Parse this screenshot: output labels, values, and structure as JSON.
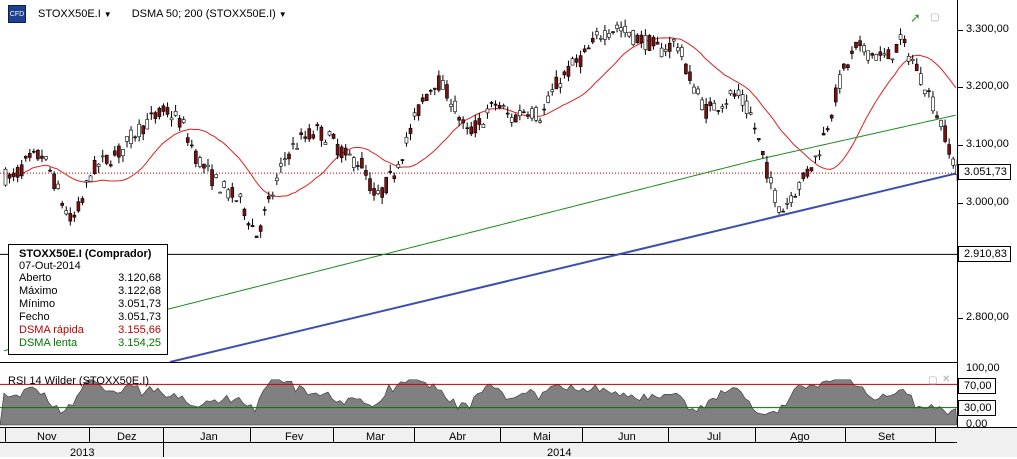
{
  "toolbar": {
    "symbol": "STOXX50E.I",
    "indicator": "DSMA 50; 200 (STOXX50E.I)",
    "cfd_icon": "CFD"
  },
  "price_axis": {
    "labels": [
      "3.300,00",
      "3.200,00",
      "3.100,00",
      "3.000,00",
      "2.800,00"
    ],
    "current_price": "3.051,73",
    "line_price": "2.910,83"
  },
  "rsi": {
    "title": "RSI 14 Wilder (STOXX50E.I)",
    "labels": [
      "100,00",
      "70,00",
      "30,00",
      "0,00"
    ]
  },
  "time_axis": {
    "months": [
      "Nov",
      "Dez",
      "Jan",
      "Fev",
      "Mar",
      "Abr",
      "Mai",
      "Jun",
      "Jul",
      "Ago",
      "Set"
    ],
    "years": [
      "2013",
      "2014"
    ]
  },
  "info_box": {
    "title": "STOXX50E.I (Comprador)",
    "date": "07-Out-2014",
    "rows": [
      {
        "label": "Aberto",
        "value": "3.120,68"
      },
      {
        "label": "Máximo",
        "value": "3.122,68"
      },
      {
        "label": "Mínimo",
        "value": "3.051,73"
      },
      {
        "label": "Fecho",
        "value": "3.051,73"
      },
      {
        "label": "DSMA rápida",
        "value": "3.155,66"
      },
      {
        "label": "DSMA lenta",
        "value": "3.154,25"
      }
    ]
  },
  "colors": {
    "up_candle": "#ffffff",
    "down_candle": "#7a1010",
    "fast_ma": "#e02020",
    "slow_ma": "#1f8a1f",
    "trendline": "#3a4fb0",
    "rsi_fill": "#808080"
  },
  "chart_data": {
    "type": "candlestick",
    "ylim": [
      2725,
      3350
    ],
    "start_price": 3052,
    "bars": 236,
    "fast_ma_label": "DSMA rápida",
    "slow_ma_label": "DSMA lenta",
    "rsi_levels": [
      70,
      30
    ],
    "rsi_range": [
      0,
      100
    ]
  }
}
